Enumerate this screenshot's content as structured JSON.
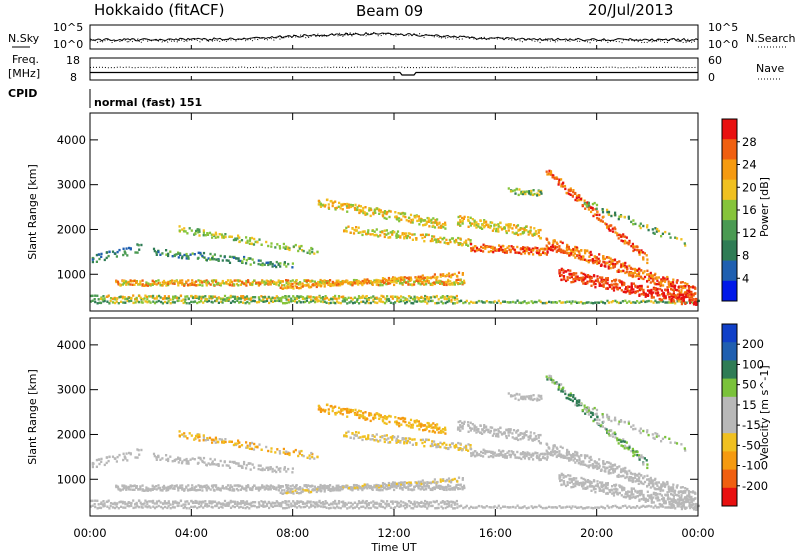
{
  "header": {
    "station": "Hokkaido (fitACF)",
    "beam": "Beam 09",
    "date": "20/Jul/2013"
  },
  "noise_panel": {
    "left_label": "N.Sky",
    "right_label": "N.Search",
    "left_ticks": [
      "10^5",
      "10^0"
    ],
    "right_ticks": [
      "10^5",
      "10^0"
    ]
  },
  "freq_panel": {
    "left_label_1": "Freq.",
    "left_label_2": "[MHz]",
    "right_label": "Nave",
    "left_ticks": [
      "18",
      "8"
    ],
    "right_ticks": [
      "60",
      "0"
    ]
  },
  "cpid_panel": {
    "label": "CPID",
    "mode_text": "normal (fast) 151"
  },
  "colors": {
    "power": [
      "#0018e8",
      "#1f5fb0",
      "#2f7c55",
      "#4a9a52",
      "#86c43a",
      "#f0c020",
      "#f59a10",
      "#f05f10",
      "#e81010"
    ],
    "velocity": [
      "#e81010",
      "#f05f10",
      "#f59a10",
      "#f0c020",
      "#b8b8b8",
      "#b8b8b8",
      "#7ac23a",
      "#2f7c55",
      "#1f5fb0",
      "#1040c8"
    ]
  },
  "chart_data": [
    {
      "type": "heatmap",
      "name": "power_panel",
      "xlabel": "",
      "ylabel": "Slant Range [km]",
      "x_range_hours": [
        0,
        24
      ],
      "ylim": [
        180,
        4600
      ],
      "y_ticks": [
        "1000",
        "2000",
        "3000",
        "4000"
      ],
      "colorbar_label": "Power [dB]",
      "colorbar_ticks": [
        "4",
        "8",
        "12",
        "16",
        "20",
        "24",
        "28"
      ]
    },
    {
      "type": "heatmap",
      "name": "velocity_panel",
      "xlabel": "Time UT",
      "ylabel": "Slant Range [km]",
      "x_range_hours": [
        0,
        24
      ],
      "x_ticks": [
        "00:00",
        "04:00",
        "08:00",
        "12:00",
        "16:00",
        "20:00",
        "00:00"
      ],
      "ylim": [
        180,
        4600
      ],
      "y_ticks": [
        "1000",
        "2000",
        "3000",
        "4000"
      ],
      "colorbar_label": "Velocity [m s^-1]",
      "colorbar_ticks": [
        "200",
        "100",
        "50",
        "15",
        "-15",
        "-50",
        "-100",
        "-200"
      ]
    }
  ]
}
